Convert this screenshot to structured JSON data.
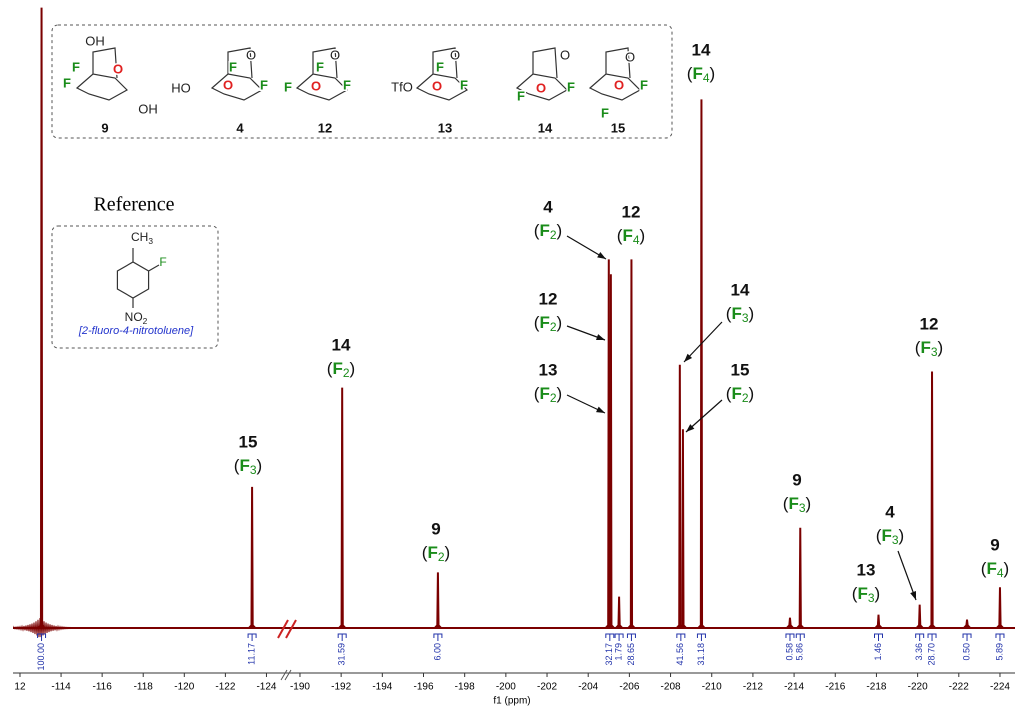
{
  "chart_data": {
    "type": "nmr",
    "x_label": "f1 (ppm)",
    "color": "#7b0000",
    "x": [
      -113.05,
      -123.3,
      -192.05,
      -196.7,
      -205.0,
      -205.1,
      -205.5,
      -206.1,
      -208.45,
      -208.6,
      -209.5,
      -213.8,
      -214.3,
      -218.1,
      -220.1,
      -220.7,
      -222.4,
      -224.0
    ],
    "values": [
      100,
      22.7,
      38.7,
      8.9,
      59.4,
      57,
      5,
      59.4,
      42.4,
      32,
      85.2,
      1.6,
      16.1,
      2.1,
      3.7,
      41.3,
      1.3,
      6.5
    ],
    "ylim": [
      0,
      100
    ],
    "axis_segments": [
      {
        "xlim": [
          -111.66,
          -125.0
        ],
        "xticks": [
          {
            "value": -112,
            "label": "12"
          },
          -114,
          -116,
          -118,
          -120,
          -122,
          -124
        ]
      },
      {
        "xlim": [
          -189.37,
          -224.73
        ],
        "xticks": [
          -190,
          -192,
          -194,
          -196,
          -198,
          -200,
          -202,
          -204,
          -206,
          -208,
          -210,
          -212,
          -214,
          -216,
          -218,
          -220,
          -222,
          -224
        ]
      }
    ],
    "integrals": {
      "color": "#2233aa",
      "x": [
        -113.05,
        -123.3,
        -192.05,
        -196.7,
        -205.05,
        -205.5,
        -206.1,
        -208.5,
        -209.5,
        -213.8,
        -214.3,
        -218.1,
        -220.1,
        -220.7,
        -222.4,
        -224.0
      ],
      "values": [
        {
          "value": 100,
          "label": "100.00"
        },
        11.17,
        31.59,
        {
          "value": 6,
          "label": "6.00"
        },
        32.17,
        1.79,
        28.65,
        41.56,
        31.18,
        0.58,
        5.86,
        1.46,
        3.36,
        {
          "value": 28.7,
          "label": "28.70"
        },
        {
          "value": 0.5,
          "label": "0.50"
        },
        5.89
      ]
    },
    "site_color": "#1a8c1a",
    "annotations": [
      {
        "compound": "15",
        "site": "(F3)"
      },
      {
        "compound": "14",
        "site": "(F2)"
      },
      {
        "compound": "9",
        "site": "(F2)"
      },
      {
        "compound": "4",
        "site": "(F2)"
      },
      {
        "compound": "12",
        "site": "(F4)"
      },
      {
        "compound": "12",
        "site": "(F2)"
      },
      {
        "compound": "13",
        "site": "(F2)"
      },
      {
        "compound": "14",
        "site": "(F4)"
      },
      {
        "compound": "14",
        "site": "(F3)"
      },
      {
        "compound": "15",
        "site": "(F2)"
      },
      {
        "compound": "9",
        "site": "(F3)"
      },
      {
        "compound": "12",
        "site": "(F3)"
      },
      {
        "compound": "13",
        "site": "(F3)"
      },
      {
        "compound": "4",
        "site": "(F3)"
      },
      {
        "compound": "9",
        "site": "(F4)"
      }
    ]
  },
  "structures": [
    {
      "label": "9",
      "atoms": [
        {
          "text": "OH",
          "color": "#222222"
        },
        {
          "text": "F",
          "color": "#1a8c1a"
        },
        {
          "text": "O",
          "color": "#e02020"
        },
        {
          "text": "F",
          "color": "#1a8c1a"
        },
        {
          "text": "OH",
          "color": "#222222"
        }
      ]
    },
    {
      "label": "4",
      "atoms": [
        {
          "text": "HO",
          "color": "#222222"
        },
        {
          "text": "O",
          "color": "#222222"
        },
        {
          "text": "F",
          "color": "#1a8c1a"
        },
        {
          "text": "O",
          "color": "#e02020"
        },
        {
          "text": "F",
          "color": "#1a8c1a"
        }
      ]
    },
    {
      "label": "12",
      "atoms": [
        {
          "text": "F",
          "color": "#1a8c1a"
        },
        {
          "text": "O",
          "color": "#222222"
        },
        {
          "text": "F",
          "color": "#1a8c1a"
        },
        {
          "text": "O",
          "color": "#e02020"
        },
        {
          "text": "F",
          "color": "#1a8c1a"
        }
      ]
    },
    {
      "label": "13",
      "atoms": [
        {
          "text": "TfO",
          "color": "#222222"
        },
        {
          "text": "O",
          "color": "#222222"
        },
        {
          "text": "F",
          "color": "#1a8c1a"
        },
        {
          "text": "O",
          "color": "#e02020"
        },
        {
          "text": "F",
          "color": "#1a8c1a"
        }
      ]
    },
    {
      "label": "14",
      "atoms": [
        {
          "text": "F",
          "color": "#1a8c1a"
        },
        {
          "text": "O",
          "color": "#222222"
        },
        {
          "text": "O",
          "color": "#e02020"
        },
        {
          "text": "F",
          "color": "#1a8c1a"
        }
      ]
    },
    {
      "label": "15",
      "atoms": [
        {
          "text": "F",
          "color": "#1a8c1a"
        },
        {
          "text": "O",
          "color": "#222222"
        },
        {
          "text": "O",
          "color": "#e02020"
        },
        {
          "text": "F",
          "color": "#1a8c1a"
        }
      ]
    }
  ],
  "reference": {
    "title": "Reference",
    "atoms": [
      {
        "text": "CH3",
        "color": "#222222"
      },
      {
        "text": "F",
        "color": "#1a8c1a"
      },
      {
        "text": "NO2",
        "color": "#222222"
      }
    ],
    "name": "[2-fluoro-4-nitrotoluene]",
    "name_color": "#2233cc"
  }
}
